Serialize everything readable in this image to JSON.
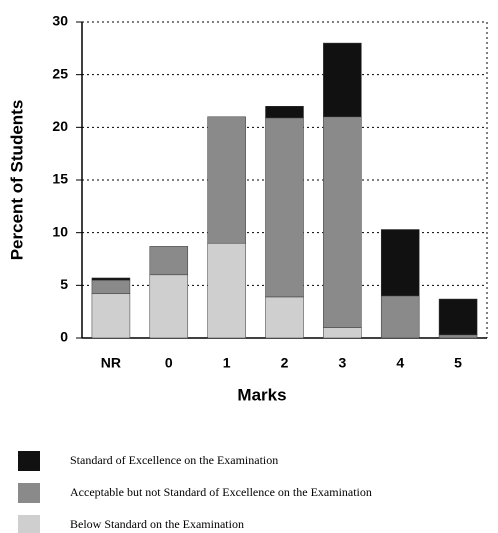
{
  "chart_data": {
    "type": "bar",
    "stacked": true,
    "x_label": "Marks",
    "y_label": "Percent of Students",
    "categories": [
      "NR",
      "0",
      "1",
      "2",
      "3",
      "4",
      "5"
    ],
    "series": [
      {
        "name": "Standard of Excellence on the Examination",
        "color": "#111111",
        "values": [
          0.2,
          0,
          0,
          1.1,
          7,
          6.3,
          3.4
        ]
      },
      {
        "name": "Acceptable but not Standard of Excellence on the Examination",
        "color": "#8a8a8a",
        "values": [
          1.3,
          2.7,
          12,
          17,
          20,
          4,
          0.3
        ]
      },
      {
        "name": "Below Standard on the Examination",
        "color": "#cfcfcf",
        "values": [
          4.2,
          6,
          9,
          3.9,
          1,
          0,
          0
        ]
      }
    ],
    "ylim": [
      0,
      30
    ],
    "yticks": [
      0,
      5,
      10,
      15,
      20,
      25,
      30
    ],
    "grid": true
  }
}
